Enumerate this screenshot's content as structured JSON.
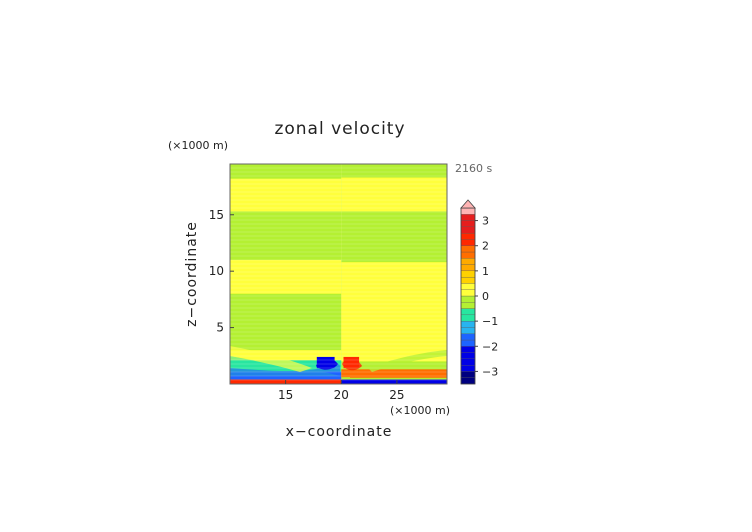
{
  "chart_data": {
    "type": "heatmap",
    "title": "zonal velocity",
    "xlabel": "x−coordinate",
    "ylabel": "z−coordinate",
    "x_unit_label": "(×1000 m)",
    "y_unit_label": "(×1000 m)",
    "time_label": "2160 s",
    "xlim": [
      10,
      29.5
    ],
    "ylim": [
      0,
      19.5
    ],
    "x_ticks": [
      15,
      20,
      25
    ],
    "y_ticks": [
      5,
      10,
      15
    ],
    "colorbar": {
      "range": [
        -3.5,
        3.5
      ],
      "step": 0.25,
      "extend_max": true,
      "tick_values": [
        3,
        2,
        1,
        0,
        -1,
        -2,
        -3
      ],
      "tick_labels": [
        "3",
        "2",
        "1",
        "0",
        "−1",
        "−2",
        "−3"
      ],
      "stops": [
        {
          "v": -3.5,
          "c": "#000080"
        },
        {
          "v": -2.5,
          "c": "#0000e6"
        },
        {
          "v": -1.75,
          "c": "#1e64ff"
        },
        {
          "v": -1.25,
          "c": "#28b4f0"
        },
        {
          "v": -0.75,
          "c": "#28e6a0"
        },
        {
          "v": -0.25,
          "c": "#b4f032"
        },
        {
          "v": 0.25,
          "c": "#ffff3c"
        },
        {
          "v": 0.75,
          "c": "#ffd200"
        },
        {
          "v": 1.25,
          "c": "#ffaa00"
        },
        {
          "v": 1.75,
          "c": "#ff6e00"
        },
        {
          "v": 2.25,
          "c": "#ff2800"
        },
        {
          "v": 2.75,
          "c": "#e61e1e"
        },
        {
          "v": 3.5,
          "c": "#ffb4b4"
        }
      ]
    },
    "regions": [
      {
        "x": [
          10,
          20
        ],
        "z": [
          0,
          19.5
        ],
        "value": 0.25
      },
      {
        "x": [
          20,
          29.5
        ],
        "z": [
          0,
          19.5
        ],
        "value": -0.25
      },
      {
        "x": [
          10,
          20
        ],
        "z": [
          18.2,
          19.5
        ],
        "value": -0.25
      },
      {
        "x": [
          10,
          20
        ],
        "z": [
          11,
          15.3
        ],
        "value": -0.25
      },
      {
        "x": [
          10,
          20
        ],
        "z": [
          3,
          8
        ],
        "value": -0.25
      },
      {
        "x": [
          20,
          29.5
        ],
        "z": [
          15.3,
          18.3
        ],
        "value": 0.25
      },
      {
        "x": [
          20,
          29.5
        ],
        "z": [
          2,
          10.8
        ],
        "value": 0.25
      },
      {
        "x": [
          10,
          20
        ],
        "z": [
          1.1,
          2.1
        ],
        "value": -0.75
      },
      {
        "x": [
          10,
          20
        ],
        "z": [
          0.4,
          1.1
        ],
        "value": -1.75
      },
      {
        "x": [
          10,
          20
        ],
        "z": [
          0,
          0.4
        ],
        "value": 2.25
      },
      {
        "x": [
          20,
          29.5
        ],
        "z": [
          0.6,
          1.3
        ],
        "value": 1.75
      },
      {
        "x": [
          20,
          29.5
        ],
        "z": [
          0,
          0.4
        ],
        "value": -2.5
      },
      {
        "x": [
          17.8,
          19.4
        ],
        "z": [
          1.4,
          2.4
        ],
        "value": -2.5
      },
      {
        "x": [
          20.2,
          21.6
        ],
        "z": [
          1.4,
          2.4
        ],
        "value": 2.25
      }
    ]
  }
}
